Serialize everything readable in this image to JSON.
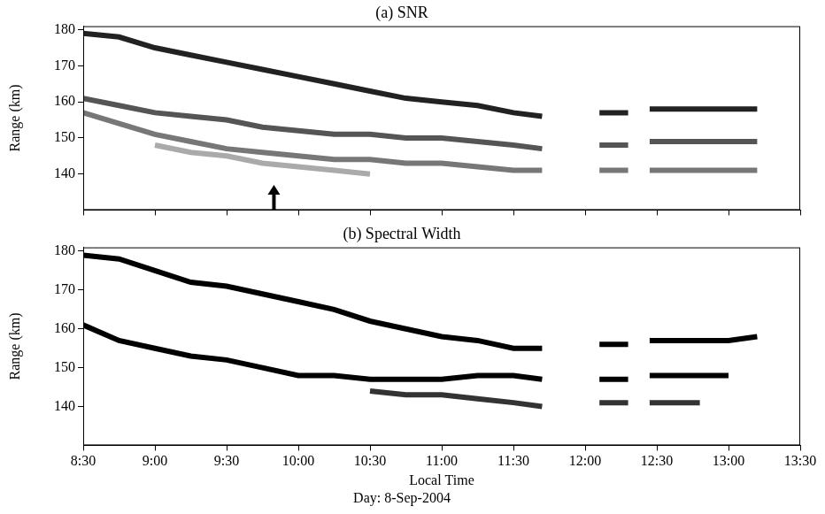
{
  "chart_data": [
    {
      "type": "line",
      "title": "(a) SNR",
      "ylabel": "Range (km)",
      "x": [
        8.5,
        8.75,
        9,
        9.25,
        9.5,
        9.75,
        10,
        10.25,
        10.5,
        10.75,
        11,
        11.25,
        11.5,
        11.7,
        11.9,
        12.1,
        12.3,
        12.38,
        12.45,
        12.6,
        12.8,
        13,
        13.2
      ],
      "series": [
        {
          "color": "#222222",
          "values": [
            179,
            178,
            175,
            173,
            171,
            169,
            167,
            165,
            163,
            161,
            160,
            159,
            157,
            156,
            null,
            157,
            157,
            null,
            158,
            158,
            158,
            158,
            158
          ]
        },
        {
          "color": "#555555",
          "values": [
            161,
            159,
            157,
            156,
            155,
            153,
            152,
            151,
            151,
            150,
            150,
            149,
            148,
            147,
            null,
            148,
            148,
            null,
            149,
            149,
            149,
            149,
            149
          ]
        },
        {
          "color": "#777777",
          "values": [
            157,
            154,
            151,
            149,
            147,
            146,
            145,
            144,
            144,
            143,
            143,
            142,
            141,
            141,
            null,
            141,
            141,
            null,
            141,
            141,
            141,
            141,
            141
          ]
        },
        {
          "color": "#aaaaaa",
          "values": [
            null,
            null,
            148,
            146,
            145,
            143,
            142,
            141,
            140,
            null,
            null,
            null,
            null,
            null,
            null,
            null,
            null,
            null,
            null,
            null,
            null,
            null,
            null
          ]
        }
      ],
      "xlim": [
        8.5,
        13.5
      ],
      "xticks": [
        {
          "value": 8.5,
          "label": "8:30"
        },
        {
          "value": 9,
          "label": "9:00"
        },
        {
          "value": 9.5,
          "label": "9:30"
        },
        {
          "value": 10,
          "label": "10:00"
        },
        {
          "value": 10.5,
          "label": "10:30"
        },
        {
          "value": 11,
          "label": "11:00"
        },
        {
          "value": 11.5,
          "label": "11:30"
        },
        {
          "value": 12,
          "label": "12:00"
        },
        {
          "value": 12.5,
          "label": "12:30"
        },
        {
          "value": 13,
          "label": "13:00"
        },
        {
          "value": 13.5,
          "label": "13:30"
        }
      ],
      "ylim": [
        130,
        181
      ],
      "yticks": [
        140,
        150,
        160,
        170,
        180
      ],
      "grid": false,
      "tick_labels": "y",
      "marker": "none",
      "line_style": "solid",
      "arrow": {
        "x": 9.83,
        "y_from": 130,
        "y_to": 137
      }
    },
    {
      "type": "line",
      "title": "(b) Spectral Width",
      "ylabel": "Range (km)",
      "xlabel": "Local Time",
      "subtitle": "Day: 8-Sep-2004",
      "x": [
        8.5,
        8.75,
        9,
        9.25,
        9.5,
        9.75,
        10,
        10.25,
        10.5,
        10.75,
        11,
        11.25,
        11.5,
        11.7,
        11.9,
        12.1,
        12.3,
        12.38,
        12.45,
        12.6,
        12.8,
        13,
        13.2
      ],
      "series": [
        {
          "color": "#000000",
          "values": [
            179,
            178,
            175,
            172,
            171,
            169,
            167,
            165,
            162,
            160,
            158,
            157,
            155,
            155,
            null,
            156,
            156,
            null,
            157,
            157,
            157,
            157,
            158
          ]
        },
        {
          "color": "#000000",
          "values": [
            161,
            157,
            155,
            153,
            152,
            150,
            148,
            148,
            147,
            147,
            147,
            148,
            148,
            147,
            null,
            147,
            147,
            null,
            148,
            148,
            148,
            148,
            null
          ]
        },
        {
          "color": "#333333",
          "values": [
            null,
            null,
            null,
            null,
            null,
            null,
            null,
            null,
            144,
            143,
            143,
            142,
            141,
            140,
            null,
            141,
            141,
            null,
            141,
            141,
            141,
            null,
            null
          ]
        }
      ],
      "xlim": [
        8.5,
        13.5
      ],
      "xticks": [
        {
          "value": 8.5,
          "label": "8:30"
        },
        {
          "value": 9,
          "label": "9:00"
        },
        {
          "value": 9.5,
          "label": "9:30"
        },
        {
          "value": 10,
          "label": "10:00"
        },
        {
          "value": 10.5,
          "label": "10:30"
        },
        {
          "value": 11,
          "label": "11:00"
        },
        {
          "value": 11.5,
          "label": "11:30"
        },
        {
          "value": 12,
          "label": "12:00"
        },
        {
          "value": 12.5,
          "label": "12:30"
        },
        {
          "value": 13,
          "label": "13:00"
        },
        {
          "value": 13.5,
          "label": "13:30"
        }
      ],
      "ylim": [
        130,
        181
      ],
      "yticks": [
        140,
        150,
        160,
        170,
        180
      ],
      "grid": false,
      "tick_labels": true,
      "marker": "none",
      "line_style": "solid"
    }
  ]
}
